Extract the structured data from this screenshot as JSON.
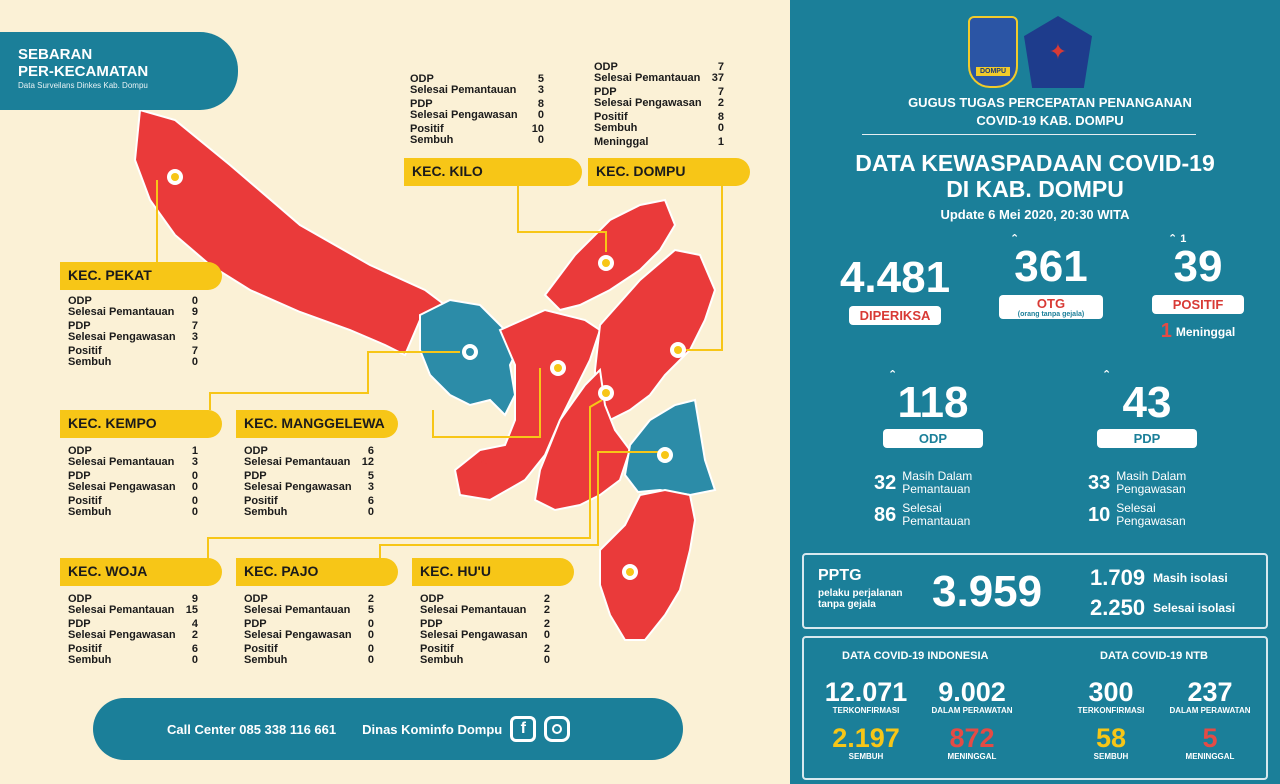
{
  "header": {
    "title_line1": "SEBARAN",
    "title_line2": "PER-KECAMATAN",
    "title_line3": "Data Surveilans Dinkes Kab. Dompu"
  },
  "kecamatan": {
    "kilo": {
      "name": "KEC. KILO",
      "rows": [
        [
          "ODP",
          "5"
        ],
        [
          "Selesai Pemantauan",
          "3"
        ],
        [
          "PDP",
          "8"
        ],
        [
          "Selesai Pengawasan",
          "0"
        ],
        [
          "Positif",
          "10"
        ],
        [
          "Sembuh",
          "0"
        ]
      ]
    },
    "dompu": {
      "name": "KEC. DOMPU",
      "rows": [
        [
          "ODP",
          "7"
        ],
        [
          "Selesai Pemantauan",
          "37"
        ],
        [
          "PDP",
          "7"
        ],
        [
          "Selesai Pengawasan",
          "2"
        ],
        [
          "Positif",
          "8"
        ],
        [
          "Sembuh",
          "0"
        ],
        [
          "Meninggal",
          "1"
        ]
      ]
    },
    "pekat": {
      "name": "KEC. PEKAT",
      "rows": [
        [
          "ODP",
          "0"
        ],
        [
          "Selesai Pemantauan",
          "9"
        ],
        [
          "PDP",
          "7"
        ],
        [
          "Selesai Pengawasan",
          "3"
        ],
        [
          "Positif",
          "7"
        ],
        [
          "Sembuh",
          "0"
        ]
      ]
    },
    "kempo": {
      "name": "KEC. KEMPO",
      "rows": [
        [
          "ODP",
          "1"
        ],
        [
          "Selesai Pemantauan",
          "3"
        ],
        [
          "PDP",
          "0"
        ],
        [
          "Selesai Pengawasan",
          "0"
        ],
        [
          "Positif",
          "0"
        ],
        [
          "Sembuh",
          "0"
        ]
      ]
    },
    "manggelewa": {
      "name": "KEC. MANGGELEWA",
      "rows": [
        [
          "ODP",
          "6"
        ],
        [
          "Selesai Pemantauan",
          "12"
        ],
        [
          "PDP",
          "5"
        ],
        [
          "Selesai Pengawasan",
          "3"
        ],
        [
          "Positif",
          "6"
        ],
        [
          "Sembuh",
          "0"
        ]
      ]
    },
    "woja": {
      "name": "KEC. WOJA",
      "rows": [
        [
          "ODP",
          "9"
        ],
        [
          "Selesai Pemantauan",
          "15"
        ],
        [
          "PDP",
          "4"
        ],
        [
          "Selesai Pengawasan",
          "2"
        ],
        [
          "Positif",
          "6"
        ],
        [
          "Sembuh",
          "0"
        ]
      ]
    },
    "pajo": {
      "name": "KEC. PAJO",
      "rows": [
        [
          "ODP",
          "2"
        ],
        [
          "Selesai Pemantauan",
          "5"
        ],
        [
          "PDP",
          "0"
        ],
        [
          "Selesai Pengawasan",
          "0"
        ],
        [
          "Positif",
          "0"
        ],
        [
          "Sembuh",
          "0"
        ]
      ]
    },
    "huu": {
      "name": "KEC. HU'U",
      "rows": [
        [
          "ODP",
          "2"
        ],
        [
          "Selesai Pemantauan",
          "2"
        ],
        [
          "PDP",
          "2"
        ],
        [
          "Selesai Pengawasan",
          "0"
        ],
        [
          "Positif",
          "2"
        ],
        [
          "Sembuh",
          "0"
        ]
      ]
    }
  },
  "footer": {
    "call_center": "Call Center 085 338 116 661",
    "dinas": "Dinas Kominfo Dompu",
    "facebook_icon": "facebook-icon",
    "instagram_icon": "instagram-icon"
  },
  "right": {
    "logo1_text": "DOMPU",
    "gugus_line1": "GUGUS TUGAS PERCEPATAN PENANGANAN",
    "gugus_line2": "COVID-19 KAB. DOMPU",
    "title_line1": "DATA KEWASPADAAN COVID-19",
    "title_line2": "DI KAB. DOMPU",
    "update": "Update 6 Mei 2020, 20:30 WITA",
    "diperiksa": {
      "value": "4.481",
      "label": "DIPERIKSA"
    },
    "otg": {
      "value": "361",
      "label": "OTG",
      "sub": "(orang tanpa gejala)"
    },
    "positif": {
      "value": "39",
      "label": "POSITIF",
      "delta": "1",
      "meninggal_num": "1",
      "meninggal_label": "Meninggal"
    },
    "odp": {
      "value": "118",
      "label": "ODP",
      "a_num": "32",
      "a_label1": "Masih Dalam",
      "a_label2": "Pemantauan",
      "b_num": "86",
      "b_label1": "Selesai",
      "b_label2": "Pemantauan"
    },
    "pdp": {
      "value": "43",
      "label": "PDP",
      "a_num": "33",
      "a_label1": "Masih Dalam",
      "a_label2": "Pengawasan",
      "b_num": "10",
      "b_label1": "Selesai",
      "b_label2": "Pengawasan"
    },
    "pptg": {
      "label": "PPTG",
      "sub1": "pelaku perjalanan",
      "sub2": "tanpa gejala",
      "value": "3.959",
      "iso1_num": "1.709",
      "iso1_label": "Masih isolasi",
      "iso2_num": "2.250",
      "iso2_label": "Selesai isolasi"
    },
    "indonesia": {
      "header_a": "DATA COVID-19 ",
      "header_b": "INDONESIA",
      "konf": "12.071",
      "konf_label": "TERKONFIRMASI",
      "rawat": "9.002",
      "rawat_label": "DALAM PERAWATAN",
      "sembuh": "2.197",
      "sembuh_label": "SEMBUH",
      "meninggal": "872",
      "meninggal_label": "MENINGGAL"
    },
    "ntb": {
      "header_a": "DATA COVID-19 ",
      "header_b": "NTB",
      "konf": "300",
      "konf_label": "TERKONFIRMASI",
      "rawat": "237",
      "rawat_label": "DALAM PERAWATAN",
      "sembuh": "58",
      "sembuh_label": "SEMBUH",
      "meninggal": "5",
      "meninggal_label": "MENINGGAL"
    }
  },
  "colors": {
    "teal": "#1b7f99",
    "red": "#ea3a3a",
    "blue_region": "#2c8ca8",
    "yellow": "#f7c617",
    "cream": "#fbf1d6"
  }
}
